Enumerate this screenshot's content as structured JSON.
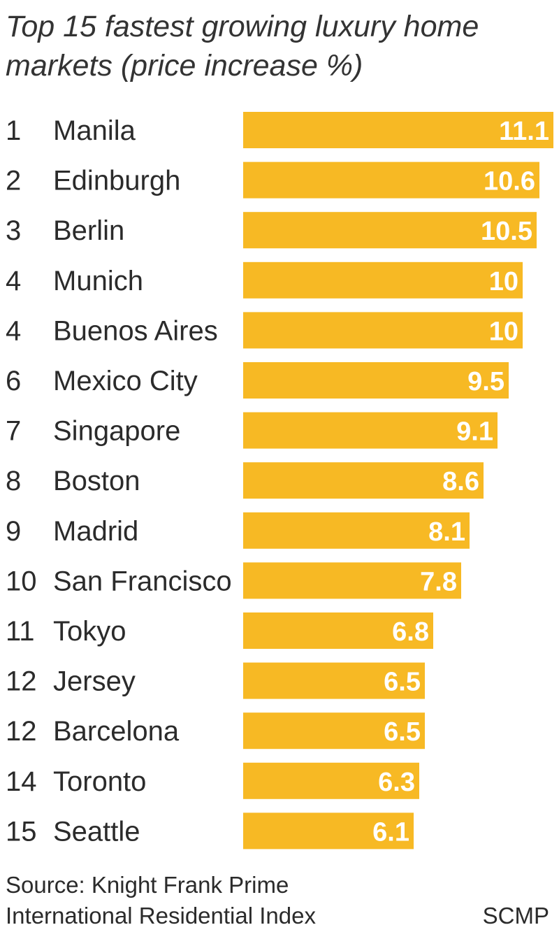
{
  "chart_data": {
    "type": "bar",
    "orientation": "horizontal",
    "title": "Top 15 fastest growing luxury home markets (price increase %)",
    "ranks": [
      "1",
      "2",
      "3",
      "4",
      "4",
      "6",
      "7",
      "8",
      "9",
      "10",
      "11",
      "12",
      "12",
      "14",
      "15"
    ],
    "categories": [
      "Manila",
      "Edinburgh",
      "Berlin",
      "Munich",
      "Buenos Aires",
      "Mexico City",
      "Singapore",
      "Boston",
      "Madrid",
      "San Francisco",
      "Tokyo",
      "Jersey",
      "Barcelona",
      "Toronto",
      "Seattle"
    ],
    "values": [
      11.1,
      10.6,
      10.5,
      10,
      10,
      9.5,
      9.1,
      8.6,
      8.1,
      7.8,
      6.8,
      6.5,
      6.5,
      6.3,
      6.1
    ],
    "value_labels": [
      "11.1",
      "10.6",
      "10.5",
      "10",
      "10",
      "9.5",
      "9.1",
      "8.6",
      "8.1",
      "7.8",
      "6.8",
      "6.5",
      "6.5",
      "6.3",
      "6.1"
    ],
    "xlim": [
      0,
      11.1
    ],
    "grid": false,
    "bar_color": "#f7b924",
    "value_label_color": "#ffffff"
  },
  "footer": {
    "source": "Source: Knight Frank Prime International Residential Index",
    "brand": "SCMP"
  }
}
